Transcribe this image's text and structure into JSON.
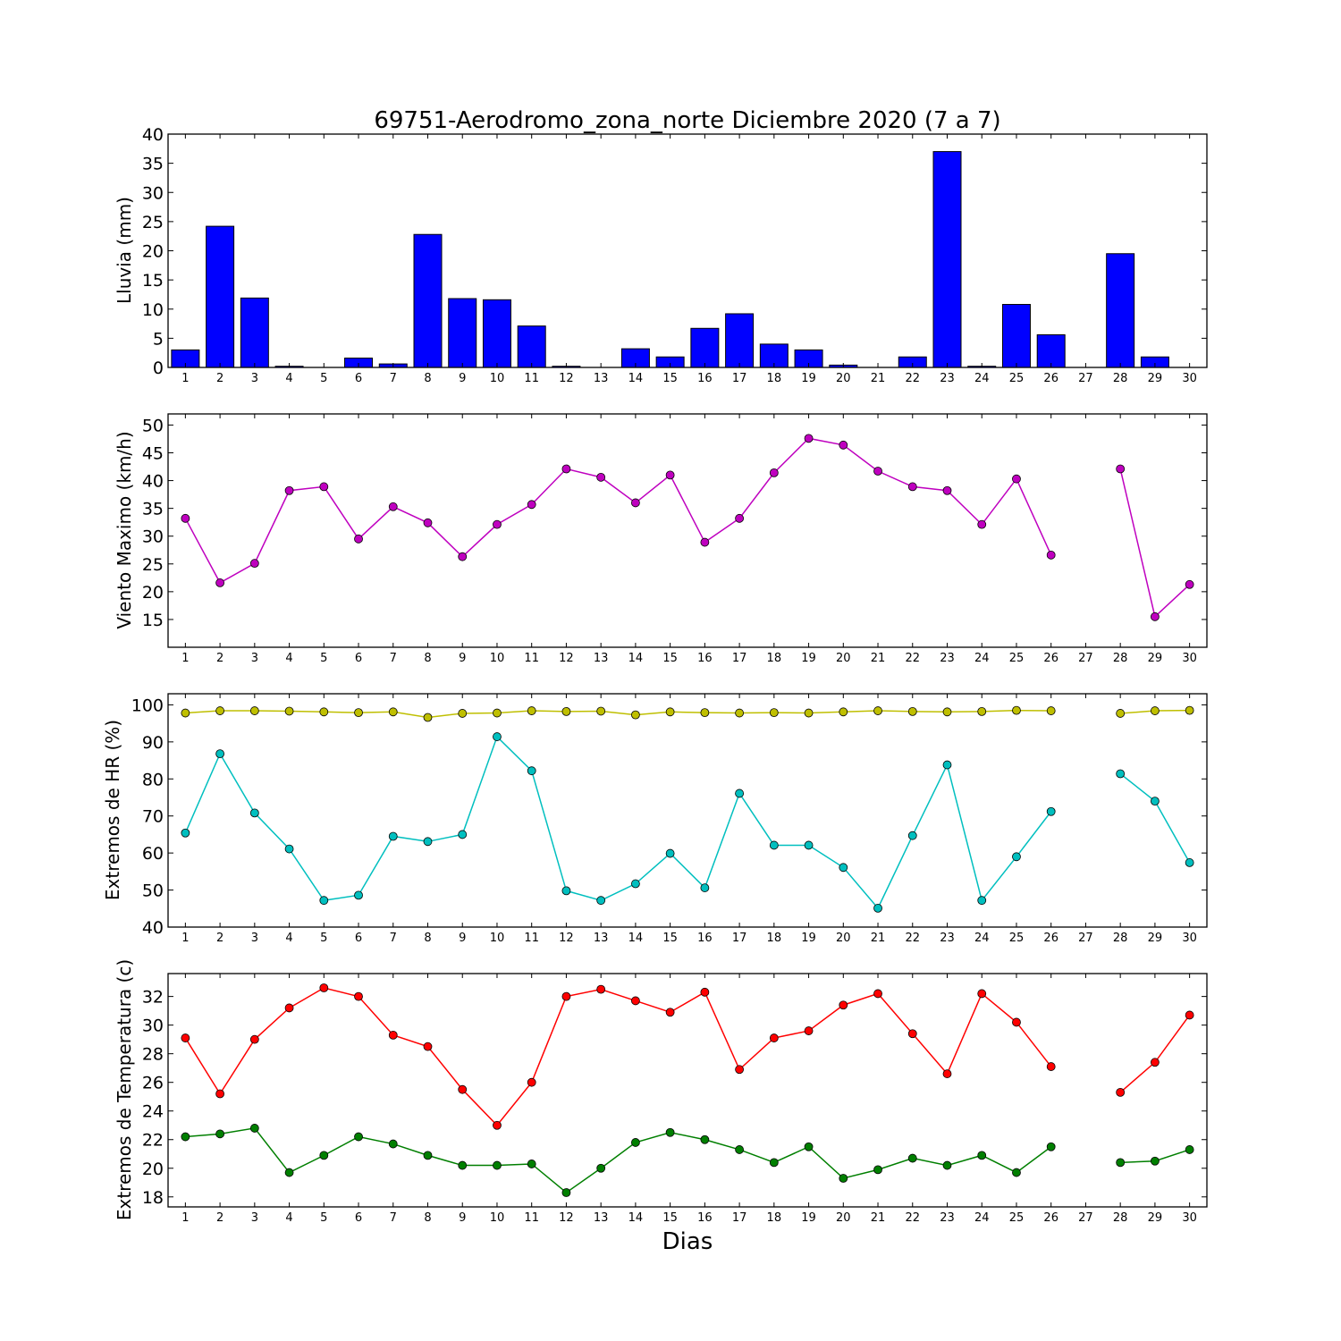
{
  "figure": {
    "title": "69751-Aerodromo_zona_norte Diciembre 2020  (7 a 7)",
    "xlabel": "Dias"
  },
  "chart_data": [
    {
      "type": "bar",
      "ylabel": "Lluvia (mm)",
      "ylim": [
        0,
        40
      ],
      "yticks": [
        0,
        5,
        10,
        15,
        20,
        25,
        30,
        35,
        40
      ],
      "categories": [
        1,
        2,
        3,
        4,
        5,
        6,
        7,
        8,
        9,
        10,
        11,
        12,
        13,
        14,
        15,
        16,
        17,
        18,
        19,
        20,
        21,
        22,
        23,
        24,
        25,
        26,
        27,
        28,
        29,
        30
      ],
      "series": [
        {
          "color": "#0000ff",
          "values": [
            3.0,
            24.2,
            11.9,
            0.2,
            0,
            1.6,
            0.6,
            22.8,
            11.8,
            11.6,
            7.1,
            0.2,
            0,
            3.2,
            1.8,
            6.7,
            9.2,
            4.0,
            3.0,
            0.4,
            0,
            1.8,
            37.0,
            0.2,
            10.8,
            5.6,
            0,
            19.5,
            1.8,
            0
          ]
        }
      ],
      "grid": false,
      "legend": "none"
    },
    {
      "type": "line",
      "ylabel": "Viento Maximo (km/h)",
      "ylim": [
        10,
        52
      ],
      "yticks": [
        15,
        20,
        25,
        30,
        35,
        40,
        45,
        50
      ],
      "x": [
        1,
        2,
        3,
        4,
        5,
        6,
        7,
        8,
        9,
        10,
        11,
        12,
        13,
        14,
        15,
        16,
        17,
        18,
        19,
        20,
        21,
        22,
        23,
        24,
        25,
        26,
        27,
        28,
        29,
        30
      ],
      "series": [
        {
          "color": "#bf00bf",
          "values": [
            33.2,
            21.6,
            25.1,
            38.2,
            38.9,
            29.5,
            35.3,
            32.4,
            26.3,
            32.1,
            35.7,
            42.1,
            40.6,
            36.0,
            41.0,
            28.9,
            33.2,
            41.4,
            47.6,
            46.4,
            41.7,
            38.9,
            38.2,
            32.1,
            40.3,
            26.6,
            null,
            42.1,
            15.5,
            21.3
          ]
        }
      ],
      "grid": false,
      "legend": "none"
    },
    {
      "type": "line",
      "ylabel": "Extremos de HR (%)",
      "ylim": [
        40,
        103
      ],
      "yticks": [
        40,
        50,
        60,
        70,
        80,
        90,
        100
      ],
      "x": [
        1,
        2,
        3,
        4,
        5,
        6,
        7,
        8,
        9,
        10,
        11,
        12,
        13,
        14,
        15,
        16,
        17,
        18,
        19,
        20,
        21,
        22,
        23,
        24,
        25,
        26,
        27,
        28,
        29,
        30
      ],
      "series": [
        {
          "color": "#bfbf00",
          "values": [
            97.8,
            98.4,
            98.4,
            98.3,
            98.1,
            97.9,
            98.1,
            96.6,
            97.7,
            97.8,
            98.4,
            98.2,
            98.3,
            97.3,
            98.1,
            97.9,
            97.8,
            97.9,
            97.8,
            98.1,
            98.4,
            98.2,
            98.1,
            98.2,
            98.5,
            98.4,
            null,
            97.7,
            98.4,
            98.5
          ]
        },
        {
          "color": "#00bfbf",
          "values": [
            65.4,
            86.8,
            70.8,
            61.1,
            47.2,
            48.6,
            64.5,
            63.1,
            65.0,
            91.4,
            82.2,
            49.8,
            47.2,
            51.7,
            59.9,
            50.6,
            76.1,
            62.1,
            62.1,
            56.1,
            45.1,
            64.7,
            83.8,
            47.2,
            59.0,
            71.2,
            null,
            81.4,
            74.0,
            57.4
          ]
        }
      ],
      "grid": false,
      "legend": "none"
    },
    {
      "type": "line",
      "ylabel": "Extremos de Temperatura (c)",
      "ylim": [
        17.3,
        33.6
      ],
      "yticks": [
        18,
        20,
        22,
        24,
        26,
        28,
        30,
        32
      ],
      "x": [
        1,
        2,
        3,
        4,
        5,
        6,
        7,
        8,
        9,
        10,
        11,
        12,
        13,
        14,
        15,
        16,
        17,
        18,
        19,
        20,
        21,
        22,
        23,
        24,
        25,
        26,
        27,
        28,
        29,
        30
      ],
      "series": [
        {
          "color": "#ff0000",
          "values": [
            29.1,
            25.2,
            29.0,
            31.2,
            32.6,
            32.0,
            29.3,
            28.5,
            25.5,
            23.0,
            26.0,
            32.0,
            32.5,
            31.7,
            30.9,
            32.3,
            26.9,
            29.1,
            29.6,
            31.4,
            32.2,
            29.4,
            26.6,
            32.2,
            30.2,
            27.1,
            null,
            25.3,
            27.4,
            30.7
          ]
        },
        {
          "color": "#007f00",
          "values": [
            22.2,
            22.4,
            22.8,
            19.7,
            20.9,
            22.2,
            21.7,
            20.9,
            20.2,
            20.2,
            20.3,
            18.3,
            20.0,
            21.8,
            22.5,
            22.0,
            21.3,
            20.4,
            21.5,
            19.3,
            19.9,
            20.7,
            20.2,
            20.9,
            19.7,
            21.5,
            null,
            20.4,
            20.5,
            21.3
          ]
        }
      ],
      "grid": false,
      "legend": "none"
    }
  ]
}
